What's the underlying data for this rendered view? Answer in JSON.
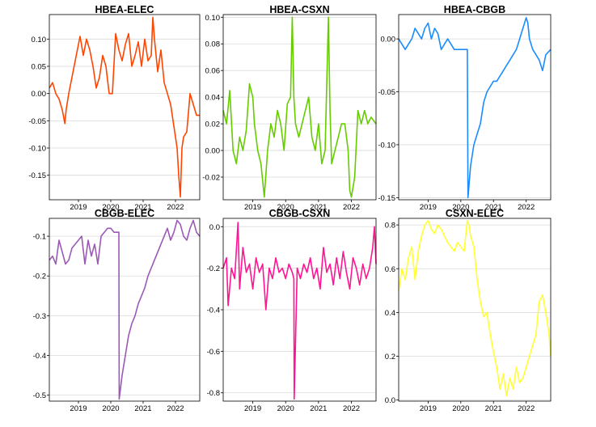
{
  "chart_data": [
    {
      "type": "line",
      "title": "HBEA-ELEC",
      "color": "#ff4500",
      "xlim": [
        2018.1,
        2022.75
      ],
      "ylim": [
        -0.195,
        0.145
      ],
      "yticks": [
        0.1,
        0.05,
        0.0,
        -0.05,
        -0.1,
        -0.15
      ],
      "ytick_labels": [
        "0.10",
        "0.05",
        "0.00",
        "-0.05",
        "-0.10",
        "-0.15"
      ],
      "xticks": [
        2019,
        2020,
        2021,
        2022
      ],
      "xtick_labels": [
        "2019",
        "2020",
        "2021",
        "2022"
      ],
      "grid": "horizontal",
      "x": [
        2018.1,
        2018.2,
        2018.3,
        2018.4,
        2018.5,
        2018.58,
        2018.62,
        2018.7,
        2018.8,
        2018.9,
        2019.0,
        2019.05,
        2019.15,
        2019.25,
        2019.35,
        2019.45,
        2019.55,
        2019.65,
        2019.75,
        2019.85,
        2019.95,
        2020.05,
        2020.15,
        2020.25,
        2020.35,
        2020.45,
        2020.55,
        2020.65,
        2020.75,
        2020.85,
        2020.95,
        2021.05,
        2021.15,
        2021.25,
        2021.3,
        2021.35,
        2021.45,
        2021.55,
        2021.65,
        2021.75,
        2021.85,
        2021.95,
        2022.05,
        2022.1,
        2022.15,
        2022.2,
        2022.25,
        2022.35,
        2022.45,
        2022.55,
        2022.65,
        2022.75
      ],
      "values": [
        0.01,
        0.02,
        0.0,
        -0.01,
        -0.03,
        -0.055,
        -0.03,
        0.0,
        0.03,
        0.06,
        0.09,
        0.105,
        0.07,
        0.1,
        0.08,
        0.05,
        0.01,
        0.03,
        0.07,
        0.05,
        0.0,
        0.0,
        0.11,
        0.08,
        0.06,
        0.09,
        0.11,
        0.05,
        0.07,
        0.095,
        0.05,
        0.1,
        0.06,
        0.07,
        0.14,
        0.1,
        0.04,
        0.08,
        0.02,
        0.0,
        -0.02,
        -0.06,
        -0.1,
        -0.15,
        -0.19,
        -0.1,
        -0.08,
        -0.07,
        0.0,
        -0.02,
        -0.04,
        -0.04
      ]
    },
    {
      "type": "line",
      "title": "HBEA-CSXN",
      "color": "#66cc00",
      "xlim": [
        2018.1,
        2022.75
      ],
      "ylim": [
        -0.037,
        0.102
      ],
      "yticks": [
        0.1,
        0.08,
        0.06,
        0.04,
        0.02,
        0.0,
        -0.02
      ],
      "ytick_labels": [
        "0.10",
        "0.08",
        "0.06",
        "0.04",
        "0.02",
        "0.00",
        "-0.02"
      ],
      "xticks": [
        2019,
        2020,
        2021,
        2022
      ],
      "xtick_labels": [
        "2019",
        "2020",
        "2021",
        "2022"
      ],
      "grid": "horizontal",
      "x": [
        2018.1,
        2018.2,
        2018.3,
        2018.4,
        2018.5,
        2018.6,
        2018.7,
        2018.8,
        2018.9,
        2018.95,
        2019.0,
        2019.05,
        2019.15,
        2019.25,
        2019.35,
        2019.45,
        2019.55,
        2019.65,
        2019.75,
        2019.85,
        2019.95,
        2020.05,
        2020.15,
        2020.2,
        2020.25,
        2020.3,
        2020.4,
        2020.5,
        2020.6,
        2020.7,
        2020.8,
        2020.9,
        2021.0,
        2021.1,
        2021.2,
        2021.3,
        2021.35,
        2021.4,
        2021.5,
        2021.6,
        2021.7,
        2021.8,
        2021.9,
        2021.95,
        2022.0,
        2022.1,
        2022.2,
        2022.3,
        2022.4,
        2022.5,
        2022.6,
        2022.75
      ],
      "values": [
        0.03,
        0.02,
        0.045,
        0.0,
        -0.01,
        0.01,
        0.0,
        0.015,
        0.05,
        0.045,
        0.04,
        0.02,
        0.0,
        -0.01,
        -0.035,
        0.0,
        0.02,
        0.01,
        0.03,
        0.02,
        0.0,
        0.035,
        0.04,
        0.1,
        0.04,
        0.02,
        0.01,
        0.02,
        0.03,
        0.04,
        0.01,
        0.0,
        0.02,
        -0.01,
        0.0,
        0.1,
        0.03,
        -0.01,
        0.0,
        0.01,
        0.02,
        0.02,
        0.0,
        -0.03,
        -0.035,
        -0.02,
        0.03,
        0.02,
        0.03,
        0.02,
        0.025,
        0.02
      ]
    },
    {
      "type": "line",
      "title": "HBEA-CBGB",
      "color": "#1a8cff",
      "xlim": [
        2018.1,
        2022.75
      ],
      "ylim": [
        -0.152,
        0.023
      ],
      "yticks": [
        0.0,
        -0.05,
        -0.1,
        -0.15
      ],
      "ytick_labels": [
        "0.00",
        "-0.05",
        "-0.10",
        "-0.15"
      ],
      "xticks": [
        2019,
        2020,
        2021,
        2022
      ],
      "xtick_labels": [
        "2019",
        "2020",
        "2021",
        "2022"
      ],
      "grid": "horizontal",
      "x": [
        2018.1,
        2018.2,
        2018.3,
        2018.4,
        2018.5,
        2018.6,
        2018.7,
        2018.8,
        2018.9,
        2019.0,
        2019.1,
        2019.2,
        2019.3,
        2019.4,
        2019.5,
        2019.6,
        2019.7,
        2019.8,
        2019.9,
        2020.0,
        2020.1,
        2020.2,
        2020.22,
        2020.3,
        2020.4,
        2020.5,
        2020.6,
        2020.7,
        2020.8,
        2020.9,
        2021.0,
        2021.1,
        2021.2,
        2021.3,
        2021.4,
        2021.5,
        2021.6,
        2021.7,
        2021.8,
        2021.9,
        2022.0,
        2022.05,
        2022.1,
        2022.2,
        2022.3,
        2022.4,
        2022.5,
        2022.6,
        2022.75
      ],
      "values": [
        0.0,
        -0.005,
        -0.01,
        -0.005,
        0.0,
        0.01,
        0.005,
        0.0,
        0.01,
        0.015,
        0.0,
        0.01,
        0.005,
        -0.01,
        -0.005,
        0.0,
        -0.005,
        -0.01,
        -0.01,
        -0.01,
        -0.01,
        -0.01,
        -0.15,
        -0.12,
        -0.1,
        -0.09,
        -0.08,
        -0.06,
        -0.05,
        -0.045,
        -0.04,
        -0.04,
        -0.035,
        -0.03,
        -0.025,
        -0.02,
        -0.015,
        -0.01,
        0.0,
        0.01,
        0.02,
        0.015,
        0.0,
        -0.01,
        -0.015,
        -0.02,
        -0.03,
        -0.015,
        -0.01
      ]
    },
    {
      "type": "line",
      "title": "CBGB-ELEC",
      "color": "#9b59b6",
      "xlim": [
        2018.1,
        2022.75
      ],
      "ylim": [
        -0.515,
        -0.055
      ],
      "yticks": [
        -0.1,
        -0.2,
        -0.3,
        -0.4,
        -0.5
      ],
      "ytick_labels": [
        "-0.1",
        "-0.2",
        "-0.3",
        "-0.4",
        "-0.5"
      ],
      "xticks": [
        2019,
        2020,
        2021,
        2022
      ],
      "xtick_labels": [
        "2019",
        "2020",
        "2021",
        "2022"
      ],
      "grid": "horizontal",
      "x": [
        2018.1,
        2018.2,
        2018.3,
        2018.4,
        2018.5,
        2018.6,
        2018.7,
        2018.8,
        2018.9,
        2019.0,
        2019.1,
        2019.2,
        2019.3,
        2019.4,
        2019.5,
        2019.6,
        2019.7,
        2019.8,
        2019.9,
        2020.0,
        2020.1,
        2020.15,
        2020.25,
        2020.26,
        2020.35,
        2020.45,
        2020.55,
        2020.65,
        2020.75,
        2020.85,
        2020.95,
        2021.05,
        2021.15,
        2021.25,
        2021.35,
        2021.45,
        2021.55,
        2021.65,
        2021.75,
        2021.85,
        2021.95,
        2022.05,
        2022.15,
        2022.25,
        2022.35,
        2022.45,
        2022.55,
        2022.65,
        2022.75
      ],
      "values": [
        -0.16,
        -0.15,
        -0.17,
        -0.11,
        -0.14,
        -0.17,
        -0.16,
        -0.13,
        -0.12,
        -0.11,
        -0.1,
        -0.17,
        -0.11,
        -0.15,
        -0.12,
        -0.17,
        -0.1,
        -0.09,
        -0.08,
        -0.08,
        -0.09,
        -0.09,
        -0.09,
        -0.51,
        -0.45,
        -0.4,
        -0.35,
        -0.32,
        -0.3,
        -0.27,
        -0.25,
        -0.23,
        -0.2,
        -0.18,
        -0.16,
        -0.14,
        -0.12,
        -0.1,
        -0.08,
        -0.11,
        -0.09,
        -0.06,
        -0.07,
        -0.1,
        -0.11,
        -0.08,
        -0.06,
        -0.09,
        -0.1
      ]
    },
    {
      "type": "line",
      "title": "CBGB-CSXN",
      "color": "#ff1493",
      "xlim": [
        2018.1,
        2022.75
      ],
      "ylim": [
        -0.84,
        0.04
      ],
      "yticks": [
        0.0,
        -0.2,
        -0.4,
        -0.6,
        -0.8
      ],
      "ytick_labels": [
        "0.0",
        "-0.2",
        "-0.4",
        "-0.6",
        "-0.8"
      ],
      "xticks": [
        2019,
        2020,
        2021,
        2022
      ],
      "xtick_labels": [
        "2019",
        "2020",
        "2021",
        "2022"
      ],
      "grid": "horizontal",
      "x": [
        2018.1,
        2018.2,
        2018.25,
        2018.35,
        2018.45,
        2018.55,
        2018.6,
        2018.7,
        2018.8,
        2018.9,
        2019.0,
        2019.1,
        2019.2,
        2019.3,
        2019.4,
        2019.5,
        2019.6,
        2019.7,
        2019.8,
        2019.9,
        2020.0,
        2020.1,
        2020.2,
        2020.25,
        2020.26,
        2020.35,
        2020.45,
        2020.55,
        2020.65,
        2020.75,
        2020.85,
        2020.95,
        2021.05,
        2021.15,
        2021.25,
        2021.35,
        2021.45,
        2021.55,
        2021.65,
        2021.75,
        2021.85,
        2021.95,
        2022.05,
        2022.15,
        2022.25,
        2022.35,
        2022.45,
        2022.55,
        2022.65,
        2022.7,
        2022.75
      ],
      "values": [
        -0.2,
        -0.15,
        -0.38,
        -0.2,
        -0.25,
        0.02,
        -0.3,
        -0.1,
        -0.22,
        -0.18,
        -0.3,
        -0.15,
        -0.22,
        -0.18,
        -0.4,
        -0.2,
        -0.25,
        -0.15,
        -0.22,
        -0.2,
        -0.25,
        -0.18,
        -0.22,
        -0.25,
        -0.83,
        -0.2,
        -0.25,
        -0.18,
        -0.22,
        -0.15,
        -0.25,
        -0.2,
        -0.3,
        -0.1,
        -0.22,
        -0.18,
        -0.28,
        -0.15,
        -0.25,
        -0.12,
        -0.22,
        -0.3,
        -0.15,
        -0.2,
        -0.28,
        -0.18,
        -0.25,
        -0.2,
        -0.1,
        0.0,
        -0.18
      ]
    },
    {
      "type": "line",
      "title": "CSXN-ELEC",
      "color": "#ffff33",
      "xlim": [
        2018.1,
        2022.75
      ],
      "ylim": [
        -0.005,
        0.83
      ],
      "yticks": [
        0.8,
        0.6,
        0.4,
        0.2,
        0.0
      ],
      "ytick_labels": [
        "0.8",
        "0.6",
        "0.4",
        "0.2",
        "0.0"
      ],
      "xticks": [
        2019,
        2020,
        2021,
        2022
      ],
      "xtick_labels": [
        "2019",
        "2020",
        "2021",
        "2022"
      ],
      "grid": "horizontal",
      "x": [
        2018.1,
        2018.2,
        2018.3,
        2018.4,
        2018.5,
        2018.6,
        2018.7,
        2018.8,
        2018.9,
        2019.0,
        2019.1,
        2019.2,
        2019.3,
        2019.4,
        2019.5,
        2019.6,
        2019.7,
        2019.8,
        2019.9,
        2020.0,
        2020.1,
        2020.2,
        2020.25,
        2020.3,
        2020.4,
        2020.5,
        2020.6,
        2020.7,
        2020.8,
        2020.9,
        2021.0,
        2021.1,
        2021.2,
        2021.3,
        2021.4,
        2021.5,
        2021.6,
        2021.7,
        2021.8,
        2021.9,
        2022.0,
        2022.1,
        2022.2,
        2022.3,
        2022.4,
        2022.5,
        2022.6,
        2022.7,
        2022.75
      ],
      "values": [
        0.5,
        0.6,
        0.55,
        0.65,
        0.7,
        0.55,
        0.68,
        0.75,
        0.8,
        0.82,
        0.78,
        0.76,
        0.8,
        0.78,
        0.75,
        0.72,
        0.7,
        0.68,
        0.72,
        0.7,
        0.68,
        0.82,
        0.8,
        0.75,
        0.7,
        0.55,
        0.45,
        0.38,
        0.4,
        0.3,
        0.22,
        0.15,
        0.05,
        0.12,
        0.02,
        0.1,
        0.05,
        0.15,
        0.08,
        0.1,
        0.15,
        0.2,
        0.25,
        0.3,
        0.45,
        0.48,
        0.4,
        0.3,
        0.2
      ]
    }
  ]
}
